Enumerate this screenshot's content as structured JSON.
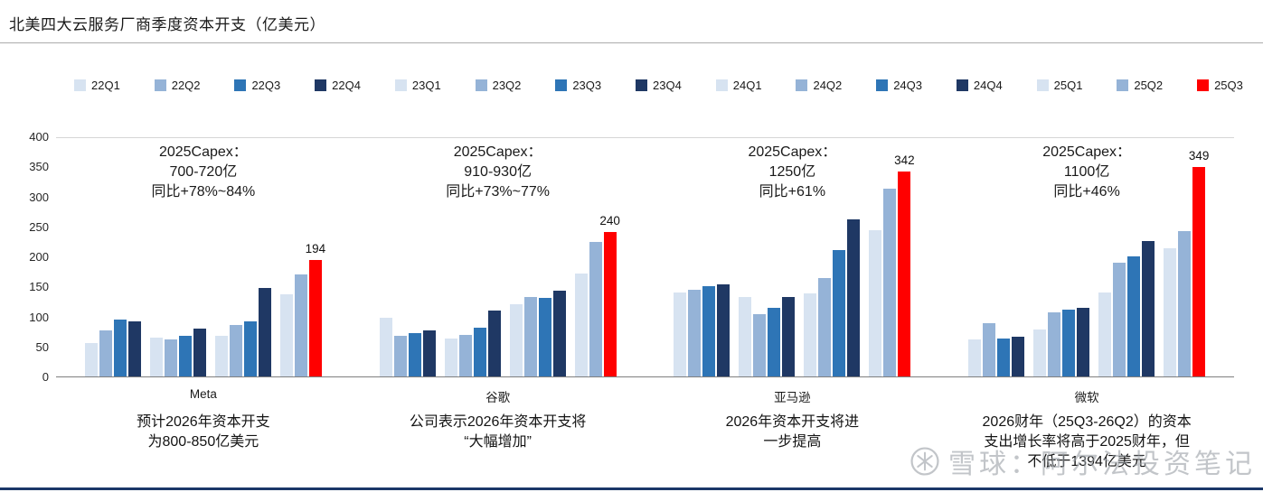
{
  "page": {
    "title": "北美四大云服务厂商季度资本开支（亿美元）"
  },
  "watermark": {
    "text": "雪球：阿尔法投资笔记",
    "icon": "snowball-logo"
  },
  "colors": {
    "q1": "#d7e3f1",
    "q2": "#95b3d7",
    "q3": "#2e75b6",
    "q4": "#1f3864",
    "highlight": "#ff0000",
    "bottom_rule": "#1b3768"
  },
  "chart_data": {
    "type": "bar",
    "title": "北美四大云服务厂商季度资本开支（亿美元）",
    "unit": "亿美元",
    "ylim": [
      0,
      400
    ],
    "yticks": [
      0,
      50,
      100,
      150,
      200,
      250,
      300,
      350,
      400
    ],
    "grid": "off",
    "legend_position": "top",
    "legend": [
      "22Q1",
      "22Q2",
      "22Q3",
      "22Q4",
      "23Q1",
      "23Q2",
      "23Q3",
      "23Q4",
      "24Q1",
      "24Q2",
      "24Q3",
      "24Q4",
      "25Q1",
      "25Q2",
      "25Q3"
    ],
    "highlight_series": "25Q3",
    "groups": [
      {
        "category": "Meta",
        "values": [
          55,
          77,
          95,
          92,
          64,
          62,
          67,
          79,
          67,
          85,
          92,
          148,
          137,
          170,
          194
        ],
        "highlight_label": "194",
        "annotation_lines": [
          "2025Capex：",
          "700-720亿",
          "同比+78%~84%"
        ],
        "footnote_lines": [
          "预计2026年资本开支",
          "为800-850亿美元"
        ]
      },
      {
        "category": "谷歌",
        "values": [
          98,
          68,
          72,
          76,
          63,
          69,
          81,
          110,
          120,
          132,
          131,
          143,
          172,
          224,
          240
        ],
        "highlight_label": "240",
        "annotation_lines": [
          "2025Capex：",
          "910-930亿",
          "同比+73%~77%"
        ],
        "footnote_lines": [
          "公司表示2026年资本开支将",
          "“大幅增加”"
        ]
      },
      {
        "category": "亚马逊",
        "values": [
          140,
          144,
          150,
          153,
          132,
          104,
          114,
          133,
          139,
          164,
          211,
          261,
          243,
          313,
          342
        ],
        "highlight_label": "342",
        "annotation_lines": [
          "2025Capex：",
          "1250亿",
          "同比+61%"
        ],
        "footnote_lines": [
          "2026年资本开支将进",
          "一步提高"
        ]
      },
      {
        "category": "微软",
        "values": [
          62,
          88,
          63,
          66,
          78,
          107,
          112,
          115,
          140,
          190,
          200,
          226,
          214,
          242,
          349
        ],
        "highlight_label": "349",
        "annotation_lines": [
          "2025Capex：",
          "1100亿",
          "同比+46%"
        ],
        "footnote_lines": [
          "2026财年（25Q3-26Q2）的资本",
          "支出增长率将高于2025财年，但",
          "不低于1394亿美元"
        ]
      }
    ]
  }
}
